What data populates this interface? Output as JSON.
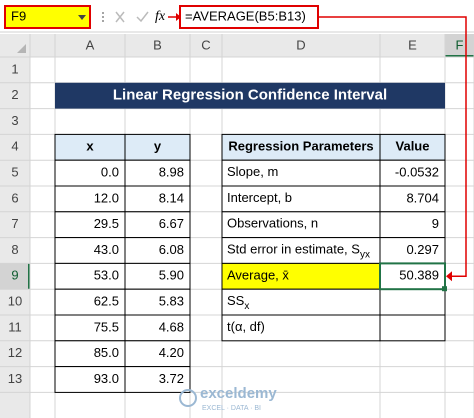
{
  "name_box": "F9",
  "fx": "fx",
  "formula": "=AVERAGE(B5:B13)",
  "columns": [
    "A",
    "B",
    "C",
    "D",
    "E",
    "F"
  ],
  "rows": [
    "1",
    "2",
    "3",
    "4",
    "5",
    "6",
    "7",
    "8",
    "9",
    "10",
    "11",
    "12",
    "13"
  ],
  "title": "Linear Regression Confidence Interval",
  "data_table": {
    "headers": [
      "x",
      "y"
    ],
    "rows": [
      [
        "0.0",
        "8.98"
      ],
      [
        "12.0",
        "8.14"
      ],
      [
        "29.5",
        "6.67"
      ],
      [
        "43.0",
        "6.08"
      ],
      [
        "53.0",
        "5.90"
      ],
      [
        "62.5",
        "5.83"
      ],
      [
        "75.5",
        "4.68"
      ],
      [
        "85.0",
        "4.20"
      ],
      [
        "93.0",
        "3.72"
      ]
    ]
  },
  "params_table": {
    "headers": [
      "Regression Parameters",
      "Value"
    ],
    "rows": [
      {
        "label": "Slope, m",
        "value": "-0.0532"
      },
      {
        "label": "Intercept, b",
        "value": "8.704"
      },
      {
        "label": "Observations, n",
        "value": "9"
      },
      {
        "label": "Std error in estimate, S",
        "sub": "yx",
        "value": "0.297"
      },
      {
        "label": "Average, x̄",
        "value": "50.389"
      },
      {
        "label": "SS",
        "sub": "x"
      },
      {
        "label": "t(α, df)"
      }
    ]
  },
  "watermark": {
    "name": "exceldemy",
    "tagline": "EXCEL · DATA · BI"
  }
}
